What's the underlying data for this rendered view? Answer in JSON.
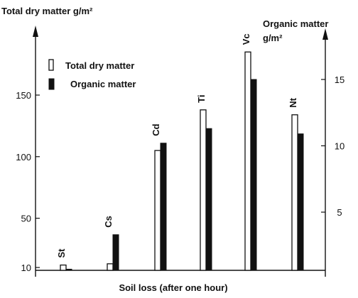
{
  "chart_data": {
    "type": "bar",
    "categories": [
      "St",
      "Cs",
      "Cd",
      "Ti",
      "Vc",
      "Nt"
    ],
    "series": [
      {
        "name": "Total dry matter",
        "axis": "left",
        "values": [
          12,
          13,
          105,
          138,
          185,
          134
        ]
      },
      {
        "name": "Organic matter",
        "axis": "right",
        "values": [
          0.7,
          3.3,
          10.2,
          11.3,
          15.0,
          10.9
        ]
      }
    ],
    "ylabel": "Total dry matter g/m²",
    "y2label_line1": "Organic matter",
    "y2label_line2": "g/m²",
    "xlabel": "Soil loss (after one hour)",
    "ylim": [
      10,
      190
    ],
    "y2lim": [
      0,
      19.5
    ],
    "yticks": [
      10,
      50,
      100,
      150
    ],
    "y2ticks": [
      5,
      10,
      15
    ],
    "legend_position": "top-left",
    "colors": {
      "total": "#ffffff",
      "organic": "#111111",
      "axis": "#111111"
    }
  }
}
